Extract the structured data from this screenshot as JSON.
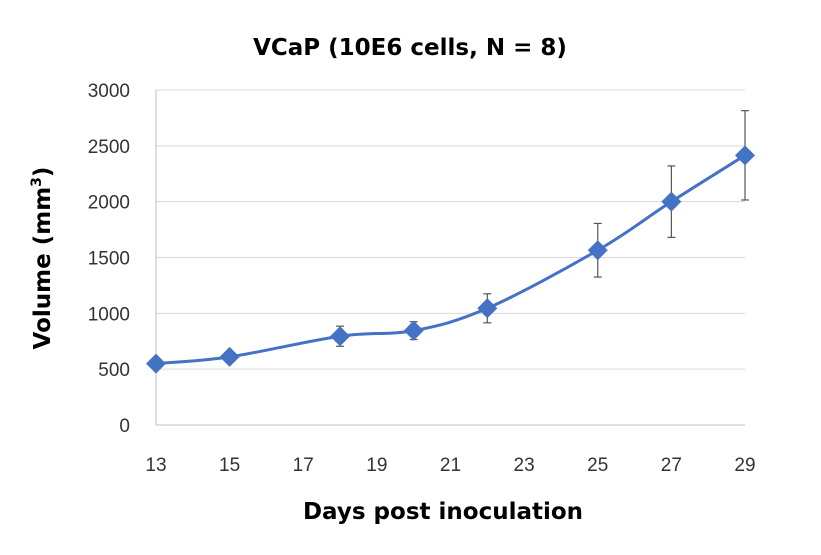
{
  "chart_data": {
    "type": "line",
    "title": "VCaP (10E6 cells, N = 8)",
    "xlabel": "Days post inoculation",
    "ylabel_main": "Volume (mm",
    "ylabel_sup": "3",
    "ylabel_close": ")",
    "xlim": [
      13,
      29
    ],
    "ylim": [
      0,
      3000
    ],
    "xticks": [
      13,
      15,
      17,
      19,
      21,
      23,
      25,
      27,
      29
    ],
    "yticks": [
      0,
      500,
      1000,
      1500,
      2000,
      2500,
      3000
    ],
    "grid": "horizontal",
    "legend": "none",
    "series": [
      {
        "color": "#4472C4",
        "marker": "diamond",
        "x": [
          13,
          15,
          18,
          20,
          22,
          25,
          27,
          29
        ],
        "y": [
          550,
          610,
          795,
          845,
          1045,
          1565,
          2000,
          2415
        ],
        "error": [
          0,
          0,
          90,
          80,
          130,
          240,
          320,
          400
        ]
      }
    ]
  }
}
